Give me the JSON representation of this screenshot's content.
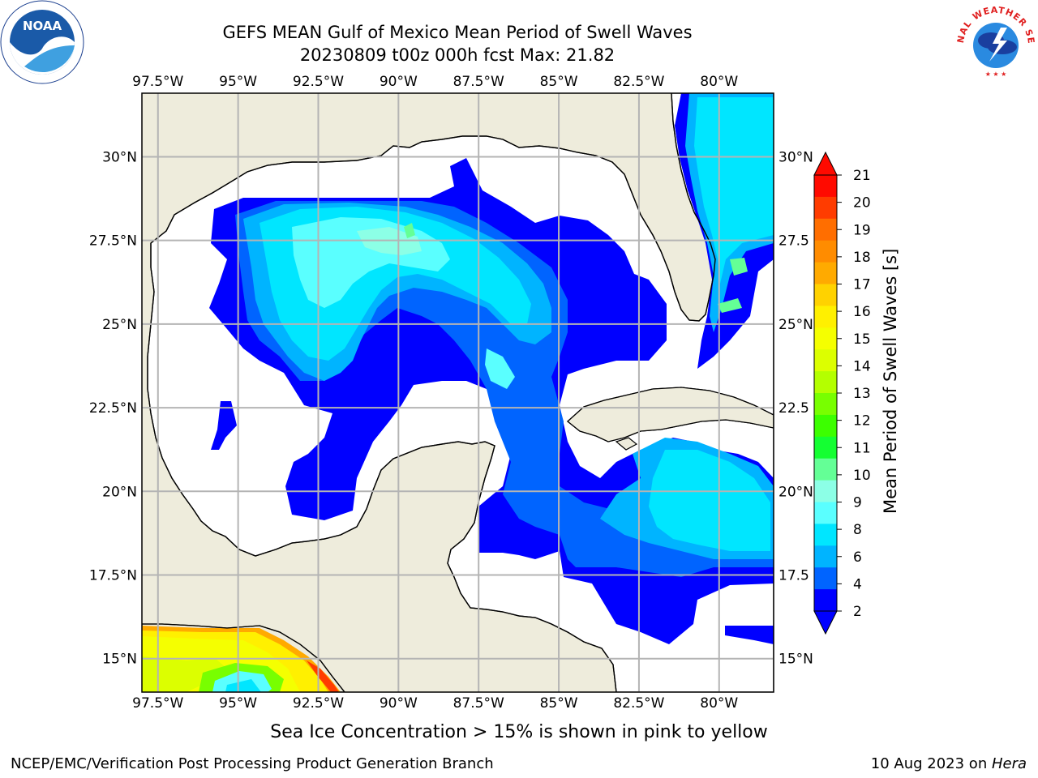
{
  "title": {
    "line1": "GEFS MEAN Gulf of Mexico Mean Period of Swell Waves",
    "line2": "20230809 t00z 000h fcst   Max: 21.82"
  },
  "map": {
    "lon_labels": [
      "97.5°W",
      "95°W",
      "92.5°W",
      "90°W",
      "87.5°W",
      "85°W",
      "82.5°W",
      "80°W"
    ],
    "lat_labels_left": [
      "30°N",
      "27.5°N",
      "25°N",
      "22.5°N",
      "20°N",
      "17.5°N",
      "15°N"
    ],
    "lat_labels_right": [
      "30°N",
      "27.5",
      "25°N",
      "22.5",
      "20°N",
      "17.5",
      "15°N"
    ],
    "lon_range": [
      -98,
      -78.3
    ],
    "lat_range": [
      14,
      31.9
    ],
    "colors": {
      "land": "#eeecdc",
      "water": "#ffffff",
      "grid": "#b4b4b4"
    }
  },
  "colorbar": {
    "title": "Mean Period of Swell Waves [s]",
    "ticks": [
      "21",
      "20",
      "19",
      "18",
      "17",
      "16",
      "15",
      "14",
      "13",
      "12",
      "11",
      "10",
      "9",
      "8",
      "6",
      "4",
      "2"
    ],
    "colors": [
      "#ff0a00",
      "#ff3c00",
      "#ff6e00",
      "#ff8c00",
      "#ffaa00",
      "#ffd200",
      "#fff000",
      "#f5ff00",
      "#dcff00",
      "#b4ff00",
      "#78ff00",
      "#3cff00",
      "#14ff32",
      "#64ff96",
      "#8cffe6",
      "#5affff",
      "#00e6ff",
      "#00b4ff",
      "#0064ff",
      "#0000ff"
    ]
  },
  "note": "Sea Ice Concentration > 15% is shown in pink to yellow",
  "footer": {
    "left": "NCEP/EMC/Verification Post Processing Product Generation Branch",
    "right_date": "10 Aug 2023 on ",
    "right_machine": "Hera"
  },
  "logos": {
    "left_text": "NOAA",
    "right_text": "NATIONAL WEATHER SERVICE"
  }
}
